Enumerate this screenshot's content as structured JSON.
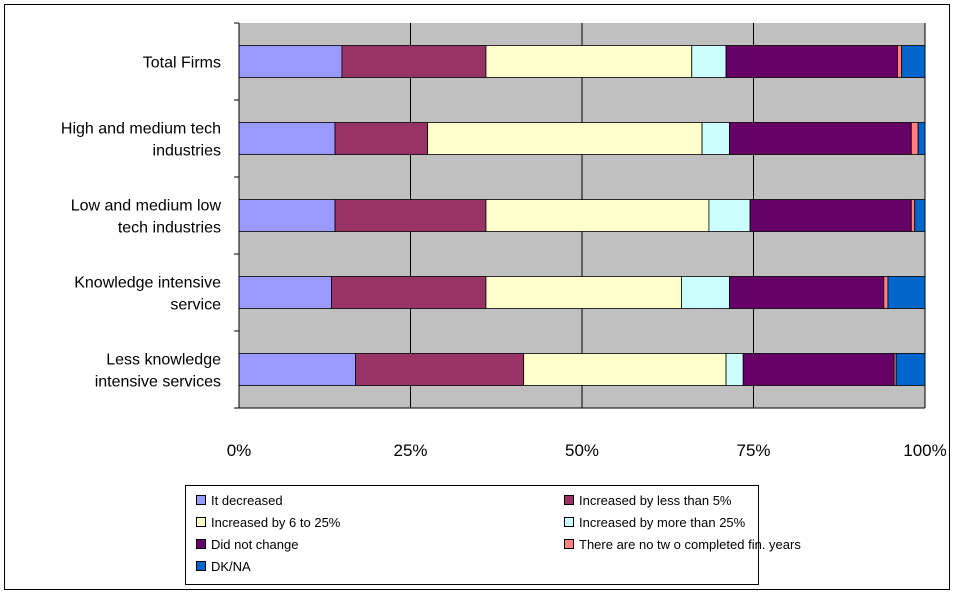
{
  "chart_data": {
    "type": "bar",
    "orientation": "horizontal",
    "stacked": "percent",
    "categories": [
      [
        "Total Firms"
      ],
      [
        "High and medium tech",
        "industries"
      ],
      [
        "Low and medium low",
        "tech industries"
      ],
      [
        "Knowledge intensive",
        "service"
      ],
      [
        "Less knowledge",
        "intensive services"
      ]
    ],
    "series": [
      {
        "name": "It decreased",
        "color": "#9999ff",
        "values": [
          15,
          14,
          14,
          13.5,
          17
        ]
      },
      {
        "name": "Increased by less than 5%",
        "color": "#993366",
        "values": [
          21,
          13.5,
          22,
          22.5,
          24.5
        ]
      },
      {
        "name": "Increased by 6 to 25%",
        "color": "#ffffcc",
        "values": [
          30,
          40,
          32.5,
          28.5,
          29.5
        ]
      },
      {
        "name": "Increased by more than 25%",
        "color": "#ccffff",
        "values": [
          5,
          4,
          6,
          7,
          2.5
        ]
      },
      {
        "name": "Did not change",
        "color": "#660066",
        "values": [
          25,
          26.5,
          23.5,
          22.5,
          22
        ]
      },
      {
        "name": "There are no tw o completed fin. years",
        "color": "#ff8080",
        "values": [
          0.6,
          1,
          0.5,
          0.6,
          0.3
        ]
      },
      {
        "name": "DK/NA",
        "color": "#0066cc",
        "values": [
          3.4,
          1,
          1.5,
          5.4,
          4.2
        ]
      }
    ],
    "xtick_labels": [
      "0%",
      "25%",
      "50%",
      "75%",
      "100%"
    ],
    "xlim": [
      0,
      100
    ],
    "grid": true,
    "plot_background": "#c0c0c0",
    "legend_position": "bottom"
  }
}
